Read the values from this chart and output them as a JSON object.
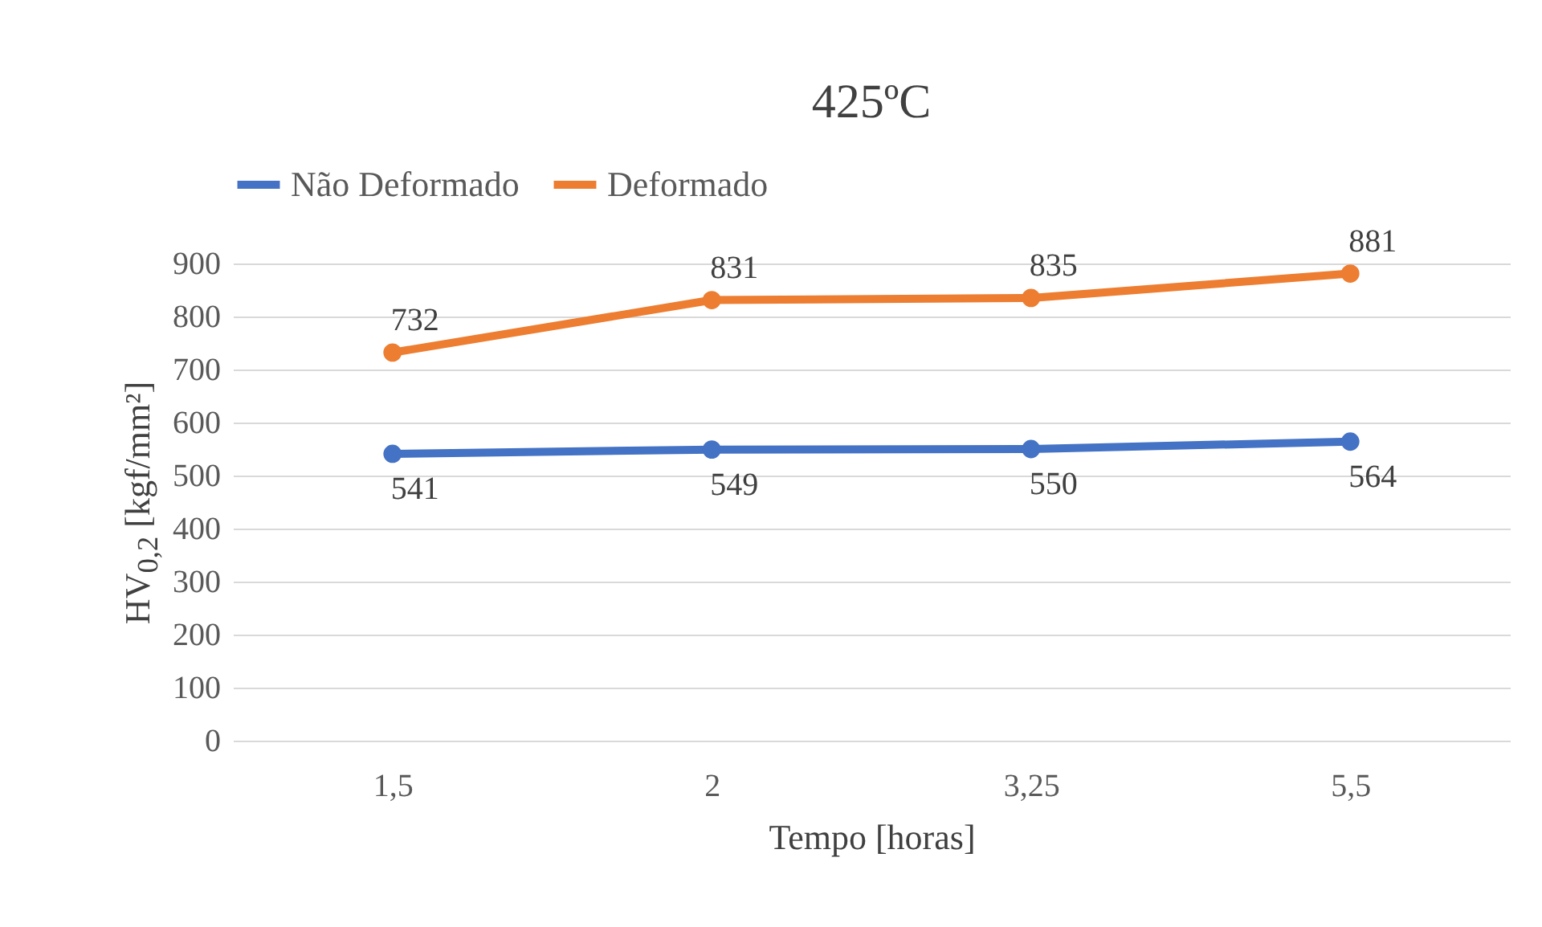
{
  "chart_data": {
    "type": "line",
    "title": "425ºC",
    "xlabel": "Tempo [horas]",
    "ylabel": "HV$_{0,2}$  [kgf/mm²]",
    "categories": [
      "1,5",
      "2",
      "3,25",
      "5,5"
    ],
    "series": [
      {
        "name": "Não Deformado",
        "color": "#4472c4",
        "values": [
          541,
          549,
          550,
          564
        ]
      },
      {
        "name": "Deformado",
        "color": "#ed7d31",
        "values": [
          732,
          831,
          835,
          881
        ]
      }
    ],
    "ylim": [
      0,
      900
    ],
    "yticks": [
      0,
      100,
      200,
      300,
      400,
      500,
      600,
      700,
      800,
      900
    ],
    "grid": "y",
    "legend": "top",
    "marker": "circle",
    "line_style": "solid",
    "data_labels": true
  }
}
